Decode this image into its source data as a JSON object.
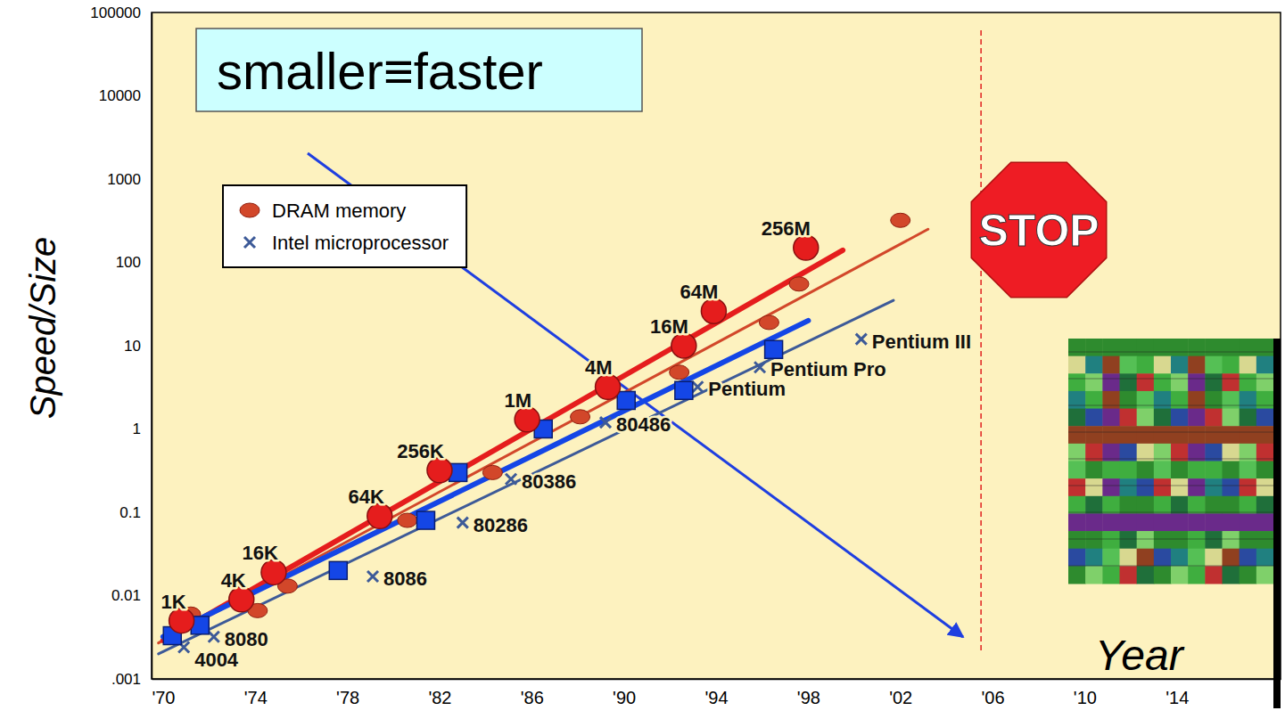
{
  "chart_data": {
    "type": "scatter",
    "log": "y",
    "annotation": "smaller≡faster",
    "x_label": "Year",
    "y_label": "Speed/Size",
    "stop_sign": "STOP",
    "vline": 2005.5,
    "xlim": [
      1969.5,
      2018.5
    ],
    "ylim": [
      0.001,
      100000
    ],
    "xticks": [
      {
        "value": 1970,
        "label": "'70"
      },
      {
        "value": 1974,
        "label": "'74"
      },
      {
        "value": 1978,
        "label": "'78"
      },
      {
        "value": 1982,
        "label": "'82"
      },
      {
        "value": 1986,
        "label": "'86"
      },
      {
        "value": 1990,
        "label": "'90"
      },
      {
        "value": 1994,
        "label": "'94"
      },
      {
        "value": 1998,
        "label": "'98"
      },
      {
        "value": 2002,
        "label": "'02"
      },
      {
        "value": 2006,
        "label": "'06"
      },
      {
        "value": 2010,
        "label": "'10"
      },
      {
        "value": 2014,
        "label": "'14"
      }
    ],
    "yticks": [
      {
        "value": 0.001,
        "label": ".001"
      },
      0.01,
      0.1,
      1,
      10,
      100,
      1000,
      10000,
      100000
    ],
    "grid": false,
    "legend": "upper left",
    "series": [
      {
        "color": "#e51d1d",
        "marker": "circle",
        "x": [
          1970.8,
          1973.4,
          1974.8,
          1979.4,
          1982.0,
          1985.8,
          1989.3,
          1992.6,
          1993.9,
          1997.9
        ],
        "values": [
          0.005,
          0.009,
          0.019,
          0.09,
          0.32,
          1.3,
          3.2,
          10,
          26,
          150
        ],
        "point_labels": [
          "1K",
          "4K",
          "16K",
          "64K",
          "256K",
          "1M",
          "4M",
          "16M",
          "64M",
          "256M"
        ],
        "trend": {
          "x": [
            1970,
            1999.5
          ],
          "values": [
            0.0029,
            140
          ]
        }
      },
      {
        "name": "DRAM memory",
        "color": "#d2472a",
        "marker": "ellipse",
        "x": [
          1971.2,
          1974.1,
          1975.4,
          1980.6,
          1984.3,
          1988.1,
          1992.4,
          1996.3,
          1997.6,
          2002.0
        ],
        "values": [
          0.006,
          0.0066,
          0.013,
          0.08,
          0.3,
          1.4,
          4.8,
          19,
          55,
          320
        ],
        "trend": {
          "x": [
            1969.8,
            2003.2
          ],
          "values": [
            0.0027,
            250
          ]
        }
      },
      {
        "color": "#1446e6",
        "marker": "square",
        "x": [
          1970.4,
          1971.6,
          1977.6,
          1981.4,
          1982.8,
          1986.5,
          1990.1,
          1992.6,
          1996.5
        ],
        "values": [
          0.0033,
          0.0044,
          0.02,
          0.08,
          0.3,
          1,
          2.2,
          2.9,
          9
        ],
        "trend": {
          "x": [
            1970,
            1998
          ],
          "values": [
            0.0032,
            20
          ]
        }
      },
      {
        "name": "Intel microprocessor",
        "color": "#3d5a98",
        "marker": "x",
        "x": [
          1970.9,
          1972.2,
          1979.1,
          1983.0,
          1985.1,
          1989.2,
          1993.2,
          1995.9,
          2000.3
        ],
        "values": [
          0.0024,
          0.0032,
          0.017,
          0.075,
          0.25,
          1.2,
          3.2,
          5.5,
          12
        ],
        "point_labels": [
          "4004",
          "8080",
          "8086",
          "80286",
          "80386",
          "80486",
          "Pentium",
          "Pentium Pro",
          "Pentium III"
        ],
        "trend": {
          "x": [
            1969.8,
            2001.7
          ],
          "values": [
            0.002,
            35
          ]
        }
      }
    ]
  }
}
